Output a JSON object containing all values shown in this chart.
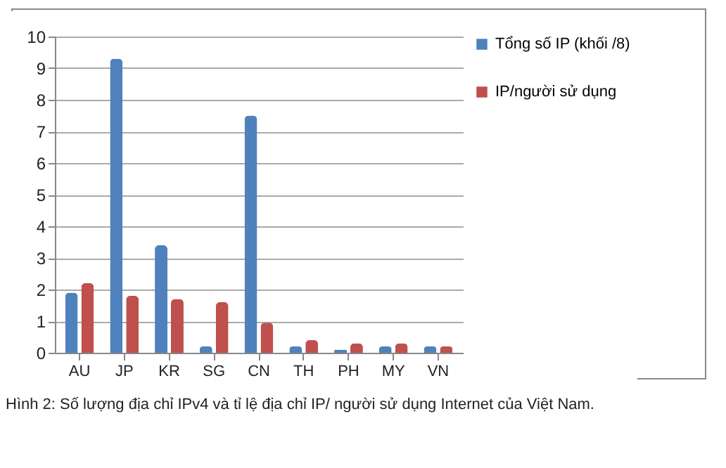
{
  "chart_data": {
    "type": "bar",
    "categories": [
      "AU",
      "JP",
      "KR",
      "SG",
      "CN",
      "TH",
      "PH",
      "MY",
      "VN"
    ],
    "series": [
      {
        "name": "Tổng số IP (khối /8)",
        "color": "#4f81bd",
        "values": [
          1.9,
          9.3,
          3.4,
          0.2,
          7.5,
          0.2,
          0.1,
          0.2,
          0.2
        ]
      },
      {
        "name": "IP/người sử dụng",
        "color": "#c0504d",
        "values": [
          2.2,
          1.8,
          1.7,
          1.6,
          0.95,
          0.4,
          0.3,
          0.3,
          0.2
        ]
      }
    ],
    "ylim": [
      0,
      10
    ],
    "yticks": [
      0,
      1,
      2,
      3,
      4,
      5,
      6,
      7,
      8,
      9,
      10
    ],
    "grid": "y",
    "legend": "right",
    "annotations": [
      "Hình 2: Số lượng địa chỉ IPv4 và tỉ lệ địa chỉ IP/ người sử dụng  Internet của Việt Nam."
    ]
  }
}
